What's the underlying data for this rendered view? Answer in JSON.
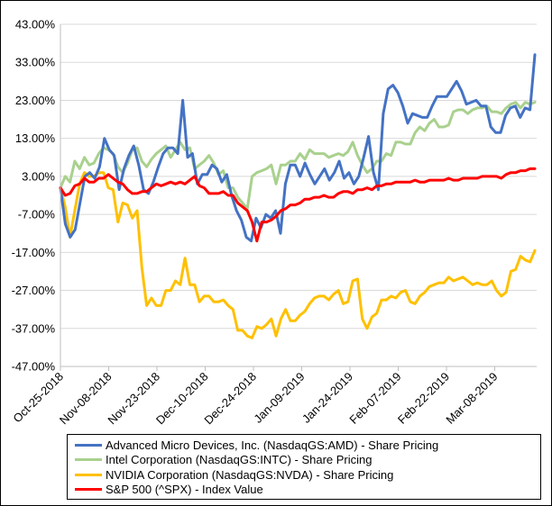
{
  "chart_data": {
    "type": "line",
    "title": "",
    "xlabel": "",
    "ylabel": "",
    "ylim": [
      -47,
      43
    ],
    "y_ticks": [
      "43.00%",
      "33.00%",
      "23.00%",
      "13.00%",
      "3.00%",
      "-7.00%",
      "-17.00%",
      "-27.00%",
      "-37.00%",
      "-47.00%"
    ],
    "x_ticks": [
      "Oct-25-2018",
      "Nov-08-2018",
      "Nov-23-2018",
      "Dec-10-2018",
      "Dec-24-2018",
      "Jan-09-2019",
      "Jan-24-2019",
      "Feb-07-2019",
      "Feb-22-2019",
      "Mar-08-2019"
    ],
    "grid": "horizontal",
    "legend_position": "bottom",
    "x_start": "Oct-25-2018",
    "x_end": "Mar-21-2019",
    "series": [
      {
        "name": "Advanced Micro Devices, Inc. (NasdaqGS:AMD) - Share Pricing",
        "color": "#4472c4",
        "values": [
          0,
          -9.5,
          -13,
          -11,
          -4,
          3,
          4,
          2.5,
          5.5,
          13,
          10,
          8.5,
          -0.5,
          5,
          8.5,
          11,
          6,
          -0.5,
          -1.5,
          1.5,
          5.5,
          9,
          10.5,
          10.5,
          9,
          23,
          8,
          9,
          1,
          3.5,
          3.5,
          6,
          5,
          1.5,
          3.5,
          -2,
          -6,
          -8.5,
          -13,
          -14,
          -8,
          -10.5,
          -7,
          -8,
          -6,
          -12,
          1,
          6,
          6,
          3,
          6.5,
          3.5,
          1,
          3,
          5,
          2,
          4,
          7,
          2.5,
          4,
          1,
          3,
          8,
          13.5,
          4,
          -0.5,
          19.5,
          26,
          27,
          25,
          21.5,
          17,
          19.5,
          19,
          18.5,
          18.5,
          21.5,
          24,
          24,
          24,
          26,
          28,
          25.5,
          22,
          22.5,
          23,
          21.5,
          21.5,
          16,
          14.5,
          14.5,
          19,
          21,
          21.5,
          18.5,
          21,
          20.5,
          35
        ]
      },
      {
        "name": "Intel Corporation (NasdaqGS:INTC) - Share Pricing",
        "color": "#a9d18e",
        "values": [
          0,
          3,
          1.5,
          7,
          5,
          8,
          6,
          6.5,
          9,
          10.5,
          10,
          9,
          5.5,
          4,
          6.5,
          10,
          10.5,
          7,
          5.5,
          7.5,
          9,
          10,
          11,
          8,
          10,
          12,
          10,
          10.5,
          5,
          6,
          7,
          8.5,
          6.5,
          3.5,
          4.5,
          0,
          0,
          -2.5,
          -4,
          -5.5,
          3,
          4,
          4.5,
          5,
          6,
          1,
          6,
          6,
          7,
          7,
          9,
          7.5,
          10,
          9,
          9,
          9,
          8,
          8.5,
          9,
          8.5,
          9.5,
          12,
          8.5,
          6,
          4,
          5,
          7,
          7,
          9,
          8.5,
          12,
          12,
          11.5,
          11.5,
          14.5,
          16,
          15,
          17,
          18,
          16,
          16,
          16.5,
          20,
          20.5,
          20.5,
          19.5,
          20.5,
          21,
          21,
          21.5,
          20,
          20,
          19.5,
          21,
          22,
          22.5,
          21,
          22.5,
          22,
          22.5
        ]
      },
      {
        "name": "NVIDIA Corporation (NasdaqGS:NVDA) - Share Pricing",
        "color": "#ffc000",
        "values": [
          0,
          -5,
          -13,
          -6,
          1,
          4,
          3,
          3,
          4,
          4,
          0,
          -0.5,
          -9,
          -4,
          -4.5,
          -8,
          -6,
          -21,
          -31,
          -29,
          -31,
          -31,
          -27,
          -27,
          -24.5,
          -25.5,
          -18.5,
          -25.5,
          -25.5,
          -30,
          -28.5,
          -28.5,
          -30,
          -30,
          -29.5,
          -31,
          -32,
          -37.5,
          -37.5,
          -39,
          -39.5,
          -36.5,
          -37,
          -36,
          -34.5,
          -39,
          -34.5,
          -32,
          -35,
          -35,
          -33.5,
          -32.5,
          -30.5,
          -29,
          -28.5,
          -28.5,
          -29.5,
          -28,
          -27,
          -30.5,
          -30,
          -24.5,
          -24,
          -34.5,
          -37,
          -34,
          -33,
          -29.5,
          -29.5,
          -28.5,
          -29,
          -27.5,
          -27,
          -30,
          -30.5,
          -28.5,
          -27.5,
          -26,
          -25.5,
          -25,
          -25,
          -23.5,
          -24.5,
          -24,
          -23.5,
          -24.5,
          -25.5,
          -25,
          -25.5,
          -25.5,
          -24.5,
          -27,
          -28.5,
          -27.5,
          -22,
          -21.5,
          -18,
          -19,
          -19.5,
          -16.5
        ]
      },
      {
        "name": "S&P 500 (^SPX) - Index Value",
        "color": "#ff0000",
        "values": [
          0,
          -2,
          -1.5,
          0.5,
          1,
          2.5,
          1.5,
          1.5,
          2.5,
          2.5,
          3.5,
          2.5,
          1.5,
          1,
          -0.5,
          -1.5,
          -1.5,
          -1,
          -1,
          0,
          1,
          0.5,
          1,
          1.5,
          1,
          1.5,
          1,
          2,
          3,
          0.5,
          0,
          -1.5,
          -1.5,
          -1.5,
          -1,
          -2,
          -2,
          -4,
          -5,
          -6,
          -9,
          -14,
          -9,
          -9,
          -8.5,
          -7.5,
          -6,
          -5.5,
          -4.5,
          -4.5,
          -4,
          -3,
          -3,
          -2.5,
          -2.5,
          -2,
          -2.5,
          -2.5,
          -1.5,
          -1,
          -1,
          -1.5,
          -0.5,
          -0.5,
          0,
          -0.5,
          0.5,
          0.5,
          1,
          1,
          1.5,
          1.5,
          1.5,
          1.5,
          2,
          1.5,
          1.5,
          2,
          2,
          2,
          2,
          2.5,
          2,
          2,
          2.5,
          2.5,
          2.5,
          2.5,
          3,
          3,
          3,
          3,
          2.5,
          3.5,
          4,
          4,
          4.5,
          4.5,
          5,
          5
        ]
      }
    ]
  }
}
